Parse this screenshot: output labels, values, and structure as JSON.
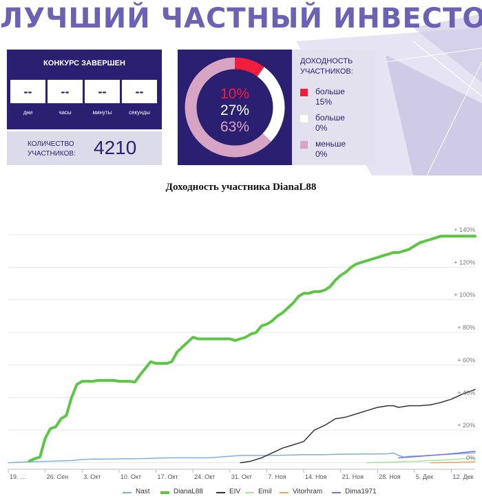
{
  "header": {
    "title": "ЛУЧШИЙ ЧАСТНЫЙ ИНВЕСТОР",
    "contest": {
      "status": "КОНКУРС ЗАВЕРШЕН",
      "countdown": [
        {
          "value": "--",
          "unit": "дни"
        },
        {
          "value": "--",
          "unit": "часы"
        },
        {
          "value": "--",
          "unit": "минуты"
        },
        {
          "value": "--",
          "unit": "секунды"
        }
      ]
    },
    "participants": {
      "label_line1": "КОЛИЧЕСТВО",
      "label_line2": "УЧАСТНИКОВ:",
      "value": "4210"
    },
    "returns": {
      "title_line1": "ДОХОДНОСТЬ",
      "title_line2": "УЧАСТНИКОВ:",
      "percent_labels": [
        "10%",
        "27%",
        "63%"
      ],
      "segments": [
        {
          "percent": 10,
          "color": "#f01e3c",
          "label_line1": "больше",
          "label_line2": "15%"
        },
        {
          "percent": 27,
          "color": "#ffffff",
          "label_line1": "больше",
          "label_line2": "0%"
        },
        {
          "percent": 63,
          "color": "#d7a5c3",
          "label_line1": "меньше",
          "label_line2": "0%"
        }
      ]
    }
  },
  "chart_data": {
    "type": "line",
    "title": "Доходность участника DianaL88",
    "x_tick_labels": [
      "19. …",
      "26. Сен",
      "3. Окт",
      "10. Окт",
      "17. Окт",
      "24. Окт",
      "31. Окт",
      "7. Ноя",
      "14. Ноя",
      "21. Ноя",
      "28. Ноя",
      "5. Дек",
      "12. Дек"
    ],
    "x_tick_days": [
      0,
      7,
      14,
      21,
      28,
      35,
      42,
      49,
      56,
      63,
      70,
      77,
      84
    ],
    "x_range_days": [
      0,
      88.5
    ],
    "y_tick_labels": [
      "0%",
      "+ 20%",
      "+ 40%",
      "+ 60%",
      "+ 80%",
      "+ 100%",
      "+ 120%",
      "+ 140%"
    ],
    "y_tick_values": [
      0,
      20,
      40,
      60,
      80,
      100,
      120,
      140
    ],
    "ylim": [
      -4,
      148
    ],
    "grid": true,
    "legend_position": "bottom",
    "series": [
      {
        "name": "Nast",
        "color": "#7cb1e3",
        "width": 1.5,
        "x": [
          0,
          2,
          4,
          6,
          8,
          10,
          12,
          14,
          16,
          18,
          20,
          22,
          24,
          26,
          28,
          30,
          32,
          34,
          36,
          38,
          40,
          42,
          44,
          46,
          48,
          50,
          52,
          54,
          56,
          58,
          60,
          62,
          64,
          66,
          68,
          70,
          72,
          73,
          74,
          75,
          76,
          78,
          80,
          82,
          84,
          86,
          88.5
        ],
        "y": [
          0,
          0.3,
          0.6,
          0.8,
          0.9,
          1.2,
          1.3,
          2.0,
          2.2,
          2.2,
          2.3,
          2.4,
          2.5,
          2.6,
          2.8,
          3.0,
          3.0,
          3.0,
          3.0,
          3.0,
          3.5,
          4.0,
          4.5,
          4.5,
          4.5,
          4.5,
          4.6,
          4.8,
          5.0,
          5.0,
          5.0,
          5.2,
          5.3,
          5.3,
          5.4,
          5.4,
          5.5,
          6.0,
          4.5,
          3.5,
          4.0,
          4.2,
          4.5,
          5.0,
          5.3,
          5.6,
          6.0
        ]
      },
      {
        "name": "DianaL88",
        "color": "#5cc644",
        "width": 4,
        "x": [
          4,
          5,
          6,
          7,
          8,
          9,
          10,
          11,
          12,
          13,
          14,
          15,
          16,
          17,
          18,
          19,
          20,
          21,
          22,
          23,
          24,
          25,
          26,
          27,
          28,
          29,
          30,
          31,
          32,
          33,
          34,
          35,
          36,
          37,
          38,
          39,
          40,
          41,
          42,
          43,
          44,
          45,
          46,
          47,
          48,
          49,
          50,
          51,
          52,
          53,
          54,
          55,
          56,
          57,
          58,
          59,
          60,
          61,
          62,
          63,
          64,
          65,
          66,
          67,
          68,
          69,
          70,
          71,
          72,
          73,
          74,
          75,
          76,
          77,
          78,
          79,
          80,
          81,
          82,
          83,
          84,
          85,
          86,
          87,
          88.5
        ],
        "y": [
          1,
          2.5,
          3.5,
          15,
          21,
          22,
          27,
          29,
          40,
          48,
          50,
          50,
          50,
          50.5,
          50.5,
          50.5,
          50.5,
          50,
          50,
          50,
          49.5,
          54,
          58,
          62,
          61,
          61,
          61,
          62,
          68,
          71,
          74,
          77,
          76,
          76,
          76,
          76,
          76,
          76,
          76,
          75,
          76,
          77,
          79,
          80,
          84,
          85,
          87,
          90,
          92,
          95,
          98,
          102,
          104,
          104,
          105,
          105,
          106,
          108,
          112,
          115,
          117,
          120,
          122,
          123,
          124,
          125,
          126,
          127,
          128,
          129,
          129,
          130,
          131,
          133,
          135,
          136,
          137,
          138,
          139,
          139,
          139,
          139,
          139,
          139,
          139
        ]
      },
      {
        "name": "EIV",
        "color": "#333333",
        "width": 1.5,
        "x": [
          44,
          46,
          48,
          50,
          52,
          54,
          56,
          58,
          60,
          62,
          64,
          66,
          68,
          70,
          72,
          73,
          74,
          75,
          76,
          78,
          80,
          82,
          84,
          86,
          88.5
        ],
        "y": [
          0,
          1,
          3,
          6,
          9,
          11,
          13,
          20,
          23,
          27,
          28,
          30,
          32,
          34,
          35,
          35,
          34,
          34.5,
          35,
          35,
          35.5,
          37,
          39,
          42,
          45
        ]
      },
      {
        "name": "Emil",
        "color": "#a6e49b",
        "width": 1.5,
        "x": [
          68,
          70,
          72,
          74,
          76,
          78,
          80,
          82,
          84,
          86,
          88.5
        ],
        "y": [
          0,
          0.2,
          0.3,
          0.5,
          0.8,
          1.0,
          1.3,
          1.6,
          2.0,
          2.4,
          3.0
        ]
      },
      {
        "name": "Vitorhram",
        "color": "#f3a35a",
        "width": 1.5,
        "x": [
          80,
          82,
          84,
          86,
          88.5
        ],
        "y": [
          0,
          0.1,
          0.2,
          0.3,
          0.5
        ]
      },
      {
        "name": "Dima1971",
        "color": "#7a6fe0",
        "width": 1.5,
        "x": [
          74,
          76,
          78,
          80,
          82,
          84,
          86,
          88.5
        ],
        "y": [
          3,
          3.5,
          4,
          4.5,
          5,
          5.5,
          6.2,
          7
        ]
      }
    ]
  }
}
